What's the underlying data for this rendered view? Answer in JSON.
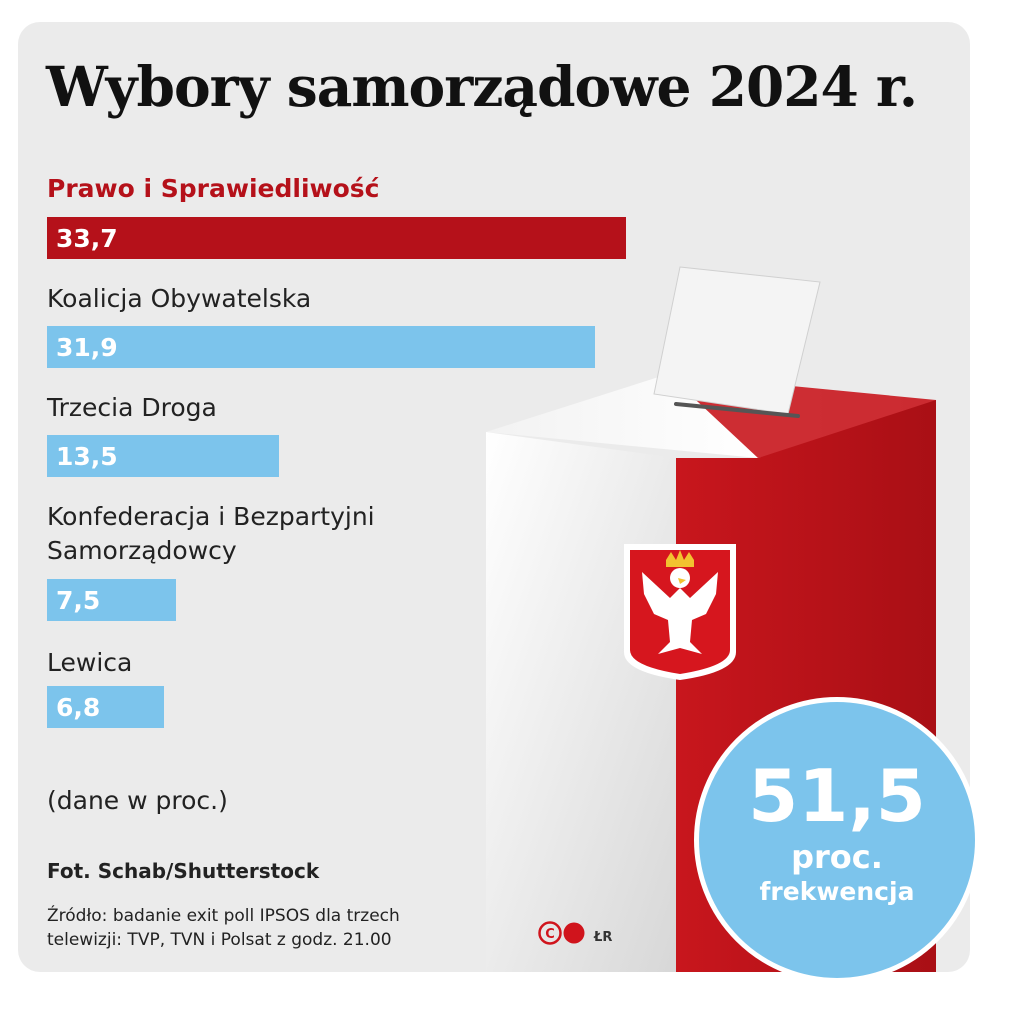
{
  "title": "Wybory samorządowe 2024 r.",
  "colors": {
    "highlight": "#b5111a",
    "bar_default": "#7cc4ec",
    "background": "#ebebeb"
  },
  "chart_data": {
    "type": "bar",
    "orientation": "horizontal",
    "categories": [
      "Prawo i Sprawiedliwość",
      "Koalicja Obywatelska",
      "Trzecia Droga",
      "Konfederacja i Bezpartyjni Samorządowcy",
      "Lewica"
    ],
    "values": [
      33.7,
      31.9,
      13.5,
      7.5,
      6.8
    ],
    "value_labels": [
      "33,7",
      "31,9",
      "13,5",
      "7,5",
      "6,8"
    ],
    "highlighted_category": "Prawo i Sprawiedliwość",
    "grid": false,
    "legend": "none",
    "unit_note": "(dane w proc.)"
  },
  "turnout": {
    "value": "51,5",
    "unit": "proc.",
    "label": "frekwencja"
  },
  "photo_credit": "Fot. Schab/Shutterstock",
  "source": "Źródło: badanie exit poll IPSOS dla trzech telewizji: TVP, TVN i Polsat z godz. 21.00",
  "logo_text": "CP",
  "author": "ŁR"
}
